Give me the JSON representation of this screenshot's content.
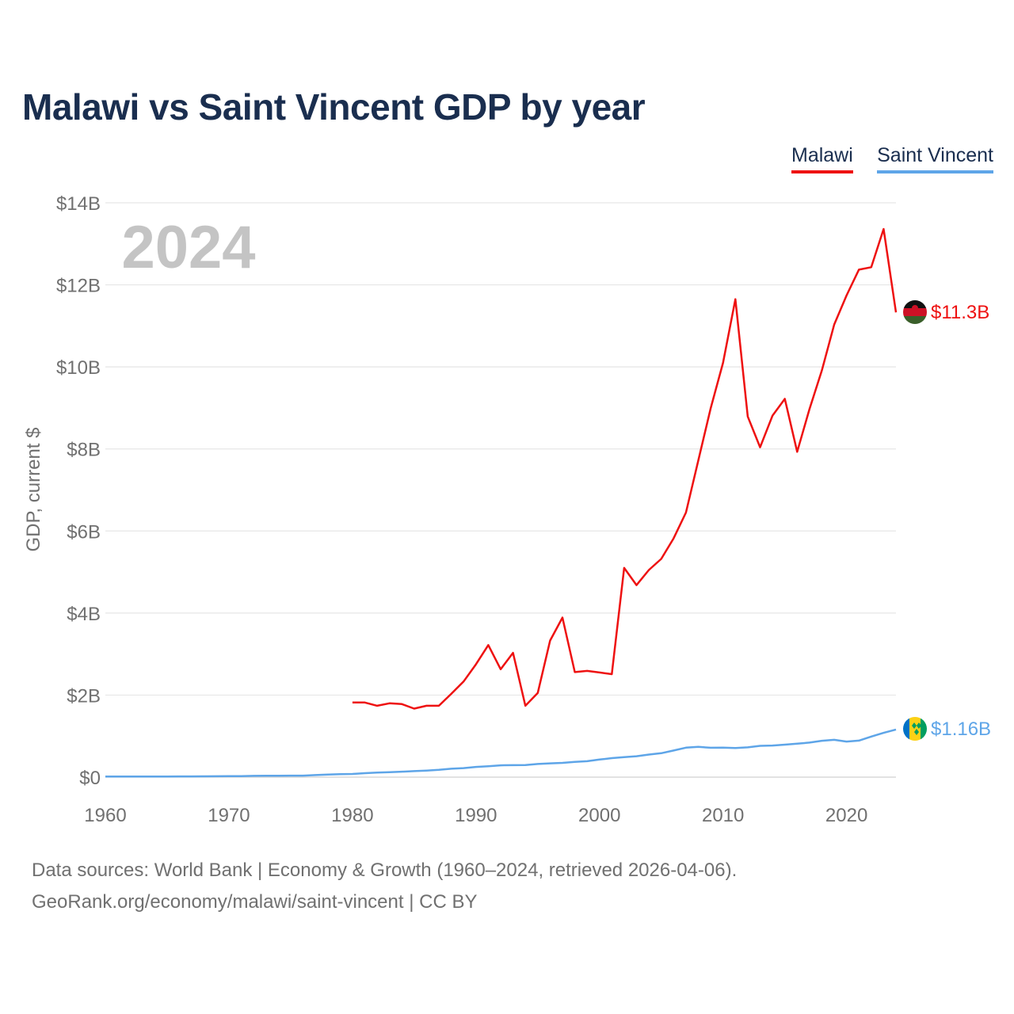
{
  "title": "Malawi vs Saint Vincent GDP by year",
  "footer": {
    "line1": "Data sources: World Bank | Economy & Growth (1960–2024, retrieved 2026-04-06).",
    "line2": "GeoRank.org/economy/malawi/saint-vincent | CC BY"
  },
  "colors": {
    "malawi": "#ee1111",
    "saint_vincent": "#5ea5e8",
    "title": "#1a2e4f",
    "year_watermark": "#c4c4c4"
  },
  "chart_data": {
    "type": "line",
    "title": "Malawi vs Saint Vincent GDP by year",
    "xlabel": "",
    "ylabel": "GDP, current $",
    "xlim": [
      1960,
      2024
    ],
    "ylim": [
      0,
      14
    ],
    "y_unit": "billions USD",
    "grid": true,
    "legend_position": "top-right",
    "current_year": "2024",
    "x_ticks": [
      1960,
      1970,
      1980,
      1990,
      2000,
      2010,
      2020
    ],
    "x_tick_labels": [
      "1960",
      "1970",
      "1980",
      "1990",
      "2000",
      "2010",
      "2020"
    ],
    "y_ticks": [
      0,
      2,
      4,
      6,
      8,
      10,
      12,
      14
    ],
    "y_tick_labels": [
      "$0",
      "$2B",
      "$4B",
      "$6B",
      "$8B",
      "$10B",
      "$12B",
      "$14B"
    ],
    "series": [
      {
        "name": "Malawi",
        "color": "#ee1111",
        "end_label": "$11.3B",
        "flag_icon": "malawi-flag-icon",
        "x": [
          1980,
          1981,
          1982,
          1983,
          1984,
          1985,
          1986,
          1987,
          1988,
          1989,
          1990,
          1991,
          1992,
          1993,
          1994,
          1995,
          1996,
          1997,
          1998,
          1999,
          2000,
          2001,
          2002,
          2003,
          2004,
          2005,
          2006,
          2007,
          2008,
          2009,
          2010,
          2011,
          2012,
          2013,
          2014,
          2015,
          2016,
          2017,
          2018,
          2019,
          2020,
          2021,
          2022,
          2023,
          2024
        ],
        "values": [
          1.82,
          1.82,
          1.74,
          1.8,
          1.78,
          1.67,
          1.74,
          1.74,
          2.03,
          2.33,
          2.75,
          3.22,
          2.63,
          3.03,
          1.74,
          2.05,
          3.33,
          3.89,
          2.56,
          2.59,
          2.55,
          2.51,
          5.1,
          4.68,
          5.05,
          5.32,
          5.82,
          6.45,
          7.72,
          8.99,
          10.1,
          11.65,
          8.79,
          8.04,
          8.81,
          9.22,
          7.93,
          8.97,
          9.91,
          11.03,
          11.74,
          12.37,
          12.43,
          13.36,
          11.33
        ]
      },
      {
        "name": "Saint Vincent",
        "color": "#5ea5e8",
        "end_label": "$1.16B",
        "flag_icon": "saint-vincent-flag-icon",
        "x": [
          1960,
          1961,
          1962,
          1963,
          1964,
          1965,
          1966,
          1967,
          1968,
          1969,
          1970,
          1971,
          1972,
          1973,
          1974,
          1975,
          1976,
          1977,
          1978,
          1979,
          1980,
          1981,
          1982,
          1983,
          1984,
          1985,
          1986,
          1987,
          1988,
          1989,
          1990,
          1991,
          1992,
          1993,
          1994,
          1995,
          1996,
          1997,
          1998,
          1999,
          2000,
          2001,
          2002,
          2003,
          2004,
          2005,
          2006,
          2007,
          2008,
          2009,
          2010,
          2011,
          2012,
          2013,
          2014,
          2015,
          2016,
          2017,
          2018,
          2019,
          2020,
          2021,
          2022,
          2023,
          2024
        ],
        "values": [
          0.013,
          0.014,
          0.015,
          0.015,
          0.015,
          0.016,
          0.017,
          0.018,
          0.019,
          0.021,
          0.023,
          0.025,
          0.031,
          0.032,
          0.034,
          0.036,
          0.037,
          0.05,
          0.061,
          0.071,
          0.078,
          0.096,
          0.111,
          0.121,
          0.134,
          0.146,
          0.16,
          0.178,
          0.204,
          0.22,
          0.25,
          0.266,
          0.288,
          0.292,
          0.296,
          0.321,
          0.336,
          0.348,
          0.372,
          0.389,
          0.428,
          0.463,
          0.488,
          0.51,
          0.55,
          0.583,
          0.648,
          0.718,
          0.737,
          0.716,
          0.72,
          0.711,
          0.727,
          0.763,
          0.771,
          0.791,
          0.814,
          0.842,
          0.886,
          0.909,
          0.867,
          0.89,
          0.988,
          1.079,
          1.16
        ]
      }
    ]
  }
}
